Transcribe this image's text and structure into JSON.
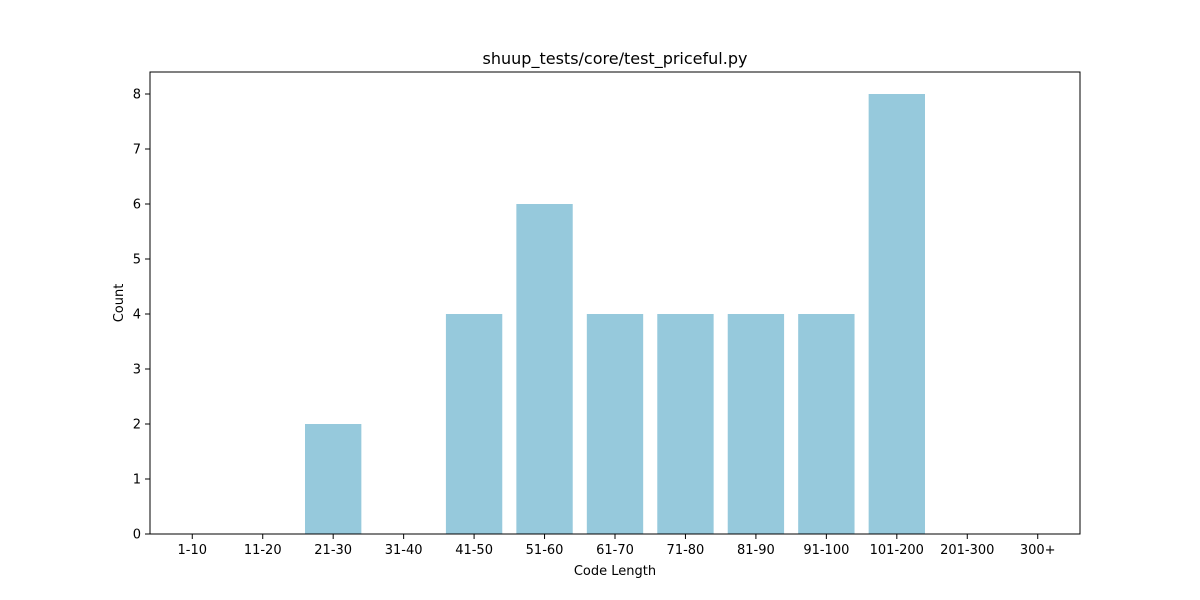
{
  "chart_data": {
    "type": "bar",
    "title": "shuup_tests/core/test_priceful.py",
    "xlabel": "Code Length",
    "ylabel": "Count",
    "categories": [
      "1-10",
      "11-20",
      "21-30",
      "31-40",
      "41-50",
      "51-60",
      "61-70",
      "71-80",
      "81-90",
      "91-100",
      "101-200",
      "201-300",
      "300+"
    ],
    "values": [
      0,
      0,
      2,
      0,
      4,
      6,
      4,
      4,
      4,
      4,
      8,
      0,
      0
    ],
    "yticks": [
      "0",
      "1",
      "2",
      "3",
      "4",
      "5",
      "6",
      "7",
      "8"
    ],
    "ylim": [
      0,
      8.4
    ],
    "grid": false,
    "legend": "none",
    "bar_color": "#96c9dc"
  }
}
